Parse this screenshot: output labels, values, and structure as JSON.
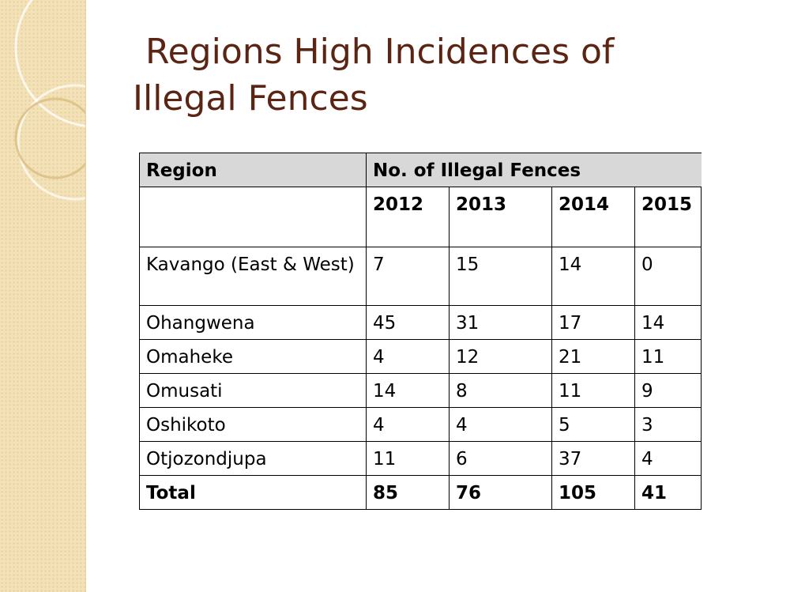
{
  "slide": {
    "title_line1": "Regions High Incidences of",
    "title_line2": "Illegal Fences"
  },
  "table": {
    "header": {
      "region": "Region",
      "category": "No. of Illegal Fences"
    },
    "years": [
      "2012",
      "2013",
      "2014",
      "2015"
    ],
    "rows": [
      {
        "region": "Kavango (East & West)",
        "values": [
          "7",
          "15",
          "14",
          "0"
        ]
      },
      {
        "region": "Ohangwena",
        "values": [
          "45",
          "31",
          "17",
          "14"
        ]
      },
      {
        "region": "Omaheke",
        "values": [
          "4",
          "12",
          "21",
          "11"
        ]
      },
      {
        "region": "Omusati",
        "values": [
          "14",
          "8",
          "11",
          "9"
        ]
      },
      {
        "region": "Oshikoto",
        "values": [
          "4",
          "4",
          "5",
          "3"
        ]
      },
      {
        "region": "Otjozondjupa",
        "values": [
          "11",
          "6",
          "37",
          "4"
        ]
      }
    ],
    "total": {
      "label": "Total",
      "values": [
        "85",
        "76",
        "105",
        "41"
      ]
    }
  },
  "theme": {
    "title_color": "#5c2413",
    "band_color": "#f3e2b8",
    "header_fill": "#d8d8d8"
  }
}
